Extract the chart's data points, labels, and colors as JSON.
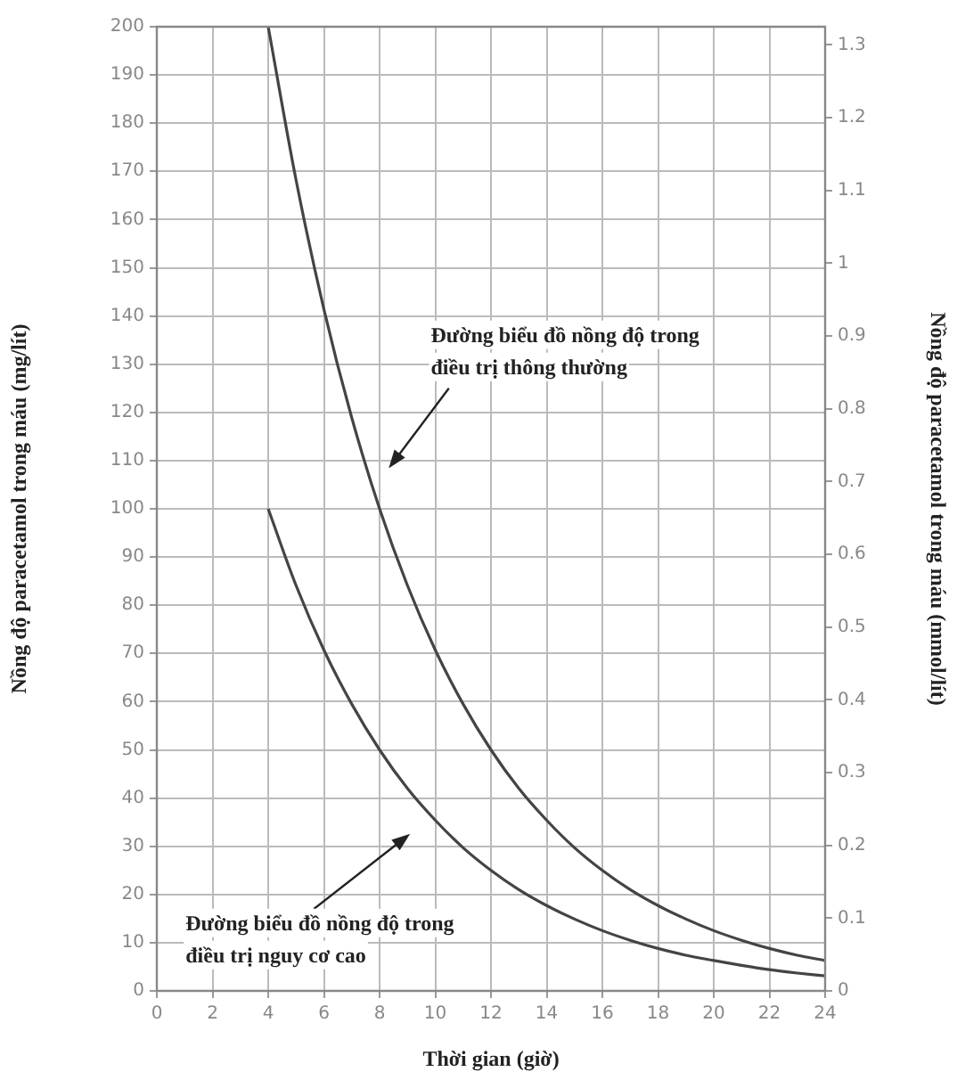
{
  "chart_data": {
    "type": "line",
    "xlabel": "Thời gian (giờ)",
    "ylabel": "Nồng độ paracetamol trong máu (mg/lít)",
    "y2label": "Nồng độ paracetamol trong máu (mmol/lít)",
    "x": [
      4,
      5,
      6,
      7,
      8,
      9,
      10,
      11,
      12,
      13,
      14,
      15,
      16,
      17,
      18,
      19,
      20,
      21,
      22,
      23,
      24
    ],
    "series": [
      {
        "color": "#444444",
        "values": [
          200,
          168.2,
          141.4,
          118.9,
          100,
          84.1,
          70.7,
          59.5,
          50,
          42,
          35.4,
          29.7,
          25,
          21,
          17.7,
          14.9,
          12.5,
          10.5,
          8.8,
          7.4,
          6.3
        ]
      },
      {
        "color": "#444444",
        "values": [
          100,
          84.1,
          70.7,
          59.5,
          50,
          42,
          35.4,
          29.7,
          25,
          21,
          17.7,
          14.9,
          12.5,
          10.5,
          8.8,
          7.4,
          6.3,
          5.3,
          4.4,
          3.7,
          3.1
        ]
      }
    ],
    "xlim": [
      0,
      24
    ],
    "xticks": [
      0,
      2,
      4,
      6,
      8,
      10,
      12,
      14,
      16,
      18,
      20,
      22,
      24
    ],
    "ylim": [
      0,
      200
    ],
    "yticks": [
      0,
      10,
      20,
      30,
      40,
      50,
      60,
      70,
      80,
      90,
      100,
      110,
      120,
      130,
      140,
      150,
      160,
      170,
      180,
      190,
      200
    ],
    "y2lim": [
      0,
      1.325
    ],
    "y2ticks": [
      0,
      0.1,
      0.2,
      0.3,
      0.4,
      0.5,
      0.6,
      0.7,
      0.8,
      0.9,
      1,
      1.1,
      1.2,
      1.3
    ],
    "annotations": [
      "Đường biểu đồ nồng độ trong\nđiều trị thông thường",
      "Đường biểu đồ nồng độ trong\nđiều trị nguy cơ cao"
    ],
    "grid": true,
    "legend": false,
    "marker": "none",
    "line_style": "solid"
  }
}
